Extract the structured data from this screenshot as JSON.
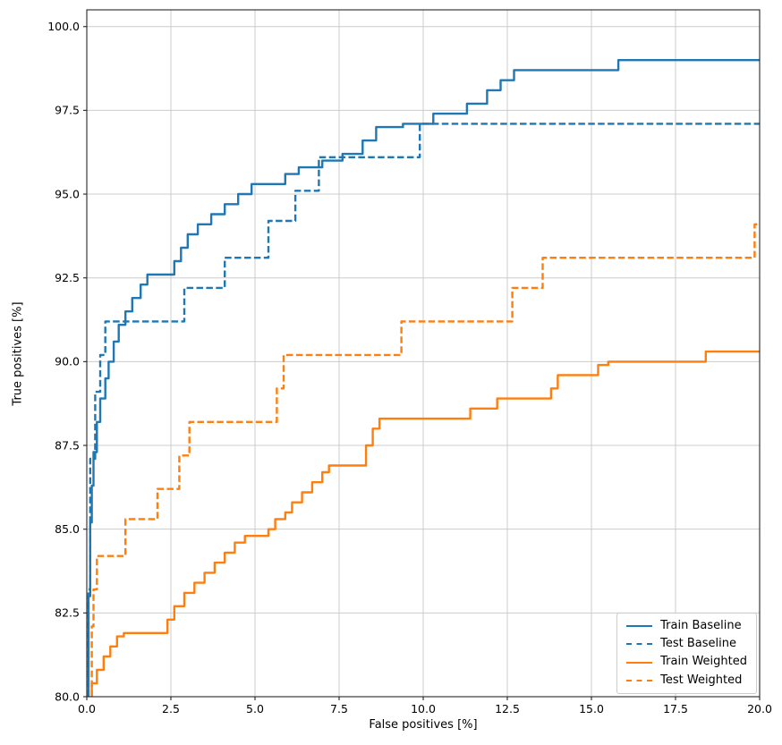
{
  "chart_data": {
    "type": "line",
    "title": "",
    "xlabel": "False positives [%]",
    "ylabel": "True positives [%]",
    "xlim": [
      0,
      20
    ],
    "ylim": [
      80,
      100.5
    ],
    "grid": true,
    "legend_position": "lower right",
    "xticks": [
      0.0,
      2.5,
      5.0,
      7.5,
      10.0,
      12.5,
      15.0,
      17.5,
      20.0
    ],
    "yticks": [
      80.0,
      82.5,
      85.0,
      87.5,
      90.0,
      92.5,
      95.0,
      97.5,
      100.0
    ],
    "xtick_labels": [
      "0.0",
      "2.5",
      "5.0",
      "7.5",
      "10.0",
      "12.5",
      "15.0",
      "17.5",
      "20.0"
    ],
    "ytick_labels": [
      "80.0",
      "82.5",
      "85.0",
      "87.5",
      "90.0",
      "92.5",
      "95.0",
      "97.5",
      "100.0"
    ],
    "colors": {
      "blue": "#1f77b4",
      "orange": "#ff7f0e",
      "grid": "#cccccc",
      "spine": "#262626"
    },
    "series": [
      {
        "name": "Train Baseline",
        "color": "#1f77b4",
        "style": "solid",
        "points": [
          [
            0.05,
            80.0
          ],
          [
            0.05,
            83.0
          ],
          [
            0.1,
            83.0
          ],
          [
            0.1,
            85.2
          ],
          [
            0.15,
            85.2
          ],
          [
            0.15,
            86.3
          ],
          [
            0.2,
            86.3
          ],
          [
            0.2,
            87.3
          ],
          [
            0.3,
            87.3
          ],
          [
            0.3,
            88.2
          ],
          [
            0.4,
            88.2
          ],
          [
            0.4,
            88.9
          ],
          [
            0.55,
            88.9
          ],
          [
            0.55,
            89.5
          ],
          [
            0.65,
            89.5
          ],
          [
            0.65,
            90.0
          ],
          [
            0.8,
            90.0
          ],
          [
            0.8,
            90.6
          ],
          [
            0.95,
            90.6
          ],
          [
            0.95,
            91.1
          ],
          [
            1.15,
            91.1
          ],
          [
            1.15,
            91.5
          ],
          [
            1.35,
            91.5
          ],
          [
            1.35,
            91.9
          ],
          [
            1.6,
            91.9
          ],
          [
            1.6,
            92.3
          ],
          [
            1.8,
            92.3
          ],
          [
            1.8,
            92.6
          ],
          [
            2.6,
            92.6
          ],
          [
            2.6,
            93.0
          ],
          [
            2.8,
            93.0
          ],
          [
            2.8,
            93.4
          ],
          [
            3.0,
            93.4
          ],
          [
            3.0,
            93.8
          ],
          [
            3.3,
            93.8
          ],
          [
            3.3,
            94.1
          ],
          [
            3.7,
            94.1
          ],
          [
            3.7,
            94.4
          ],
          [
            4.1,
            94.4
          ],
          [
            4.1,
            94.7
          ],
          [
            4.5,
            94.7
          ],
          [
            4.5,
            95.0
          ],
          [
            4.9,
            95.0
          ],
          [
            4.9,
            95.3
          ],
          [
            5.9,
            95.3
          ],
          [
            5.9,
            95.6
          ],
          [
            6.3,
            95.6
          ],
          [
            6.3,
            95.8
          ],
          [
            7.0,
            95.8
          ],
          [
            7.0,
            96.0
          ],
          [
            7.6,
            96.0
          ],
          [
            7.6,
            96.2
          ],
          [
            8.2,
            96.2
          ],
          [
            8.2,
            96.6
          ],
          [
            8.6,
            96.6
          ],
          [
            8.6,
            97.0
          ],
          [
            9.4,
            97.0
          ],
          [
            9.4,
            97.1
          ],
          [
            10.3,
            97.1
          ],
          [
            10.3,
            97.4
          ],
          [
            11.3,
            97.4
          ],
          [
            11.3,
            97.7
          ],
          [
            11.9,
            97.7
          ],
          [
            11.9,
            98.1
          ],
          [
            12.3,
            98.1
          ],
          [
            12.3,
            98.4
          ],
          [
            12.7,
            98.4
          ],
          [
            12.7,
            98.7
          ],
          [
            15.8,
            98.7
          ],
          [
            15.8,
            99.0
          ],
          [
            20.0,
            99.0
          ]
        ]
      },
      {
        "name": "Test Baseline",
        "color": "#1f77b4",
        "style": "dashed",
        "points": [
          [
            0.05,
            80.0
          ],
          [
            0.05,
            83.2
          ],
          [
            0.1,
            83.2
          ],
          [
            0.1,
            87.1
          ],
          [
            0.25,
            87.1
          ],
          [
            0.25,
            89.1
          ],
          [
            0.4,
            89.1
          ],
          [
            0.4,
            90.2
          ],
          [
            0.55,
            90.2
          ],
          [
            0.55,
            91.2
          ],
          [
            2.9,
            91.2
          ],
          [
            2.9,
            92.2
          ],
          [
            4.1,
            92.2
          ],
          [
            4.1,
            93.1
          ],
          [
            5.4,
            93.1
          ],
          [
            5.4,
            94.2
          ],
          [
            6.2,
            94.2
          ],
          [
            6.2,
            95.1
          ],
          [
            6.9,
            95.1
          ],
          [
            6.9,
            96.1
          ],
          [
            9.9,
            96.1
          ],
          [
            9.9,
            97.1
          ],
          [
            20.0,
            97.1
          ]
        ]
      },
      {
        "name": "Train Weighted",
        "color": "#ff7f0e",
        "style": "solid",
        "points": [
          [
            0.15,
            80.0
          ],
          [
            0.15,
            80.4
          ],
          [
            0.3,
            80.4
          ],
          [
            0.3,
            80.8
          ],
          [
            0.5,
            80.8
          ],
          [
            0.5,
            81.2
          ],
          [
            0.7,
            81.2
          ],
          [
            0.7,
            81.5
          ],
          [
            0.9,
            81.5
          ],
          [
            0.9,
            81.8
          ],
          [
            1.1,
            81.8
          ],
          [
            1.1,
            81.9
          ],
          [
            2.4,
            81.9
          ],
          [
            2.4,
            82.3
          ],
          [
            2.6,
            82.3
          ],
          [
            2.6,
            82.7
          ],
          [
            2.9,
            82.7
          ],
          [
            2.9,
            83.1
          ],
          [
            3.2,
            83.1
          ],
          [
            3.2,
            83.4
          ],
          [
            3.5,
            83.4
          ],
          [
            3.5,
            83.7
          ],
          [
            3.8,
            83.7
          ],
          [
            3.8,
            84.0
          ],
          [
            4.1,
            84.0
          ],
          [
            4.1,
            84.3
          ],
          [
            4.4,
            84.3
          ],
          [
            4.4,
            84.6
          ],
          [
            4.7,
            84.6
          ],
          [
            4.7,
            84.8
          ],
          [
            5.4,
            84.8
          ],
          [
            5.4,
            85.0
          ],
          [
            5.6,
            85.0
          ],
          [
            5.6,
            85.3
          ],
          [
            5.9,
            85.3
          ],
          [
            5.9,
            85.5
          ],
          [
            6.1,
            85.5
          ],
          [
            6.1,
            85.8
          ],
          [
            6.4,
            85.8
          ],
          [
            6.4,
            86.1
          ],
          [
            6.7,
            86.1
          ],
          [
            6.7,
            86.4
          ],
          [
            7.0,
            86.4
          ],
          [
            7.0,
            86.7
          ],
          [
            7.2,
            86.7
          ],
          [
            7.2,
            86.9
          ],
          [
            8.3,
            86.9
          ],
          [
            8.3,
            87.5
          ],
          [
            8.5,
            87.5
          ],
          [
            8.5,
            88.0
          ],
          [
            8.7,
            88.0
          ],
          [
            8.7,
            88.3
          ],
          [
            11.4,
            88.3
          ],
          [
            11.4,
            88.6
          ],
          [
            12.2,
            88.6
          ],
          [
            12.2,
            88.9
          ],
          [
            13.8,
            88.9
          ],
          [
            13.8,
            89.2
          ],
          [
            14.0,
            89.2
          ],
          [
            14.0,
            89.6
          ],
          [
            15.2,
            89.6
          ],
          [
            15.2,
            89.9
          ],
          [
            15.5,
            89.9
          ],
          [
            15.5,
            90.0
          ],
          [
            18.4,
            90.0
          ],
          [
            18.4,
            90.3
          ],
          [
            20.0,
            90.3
          ]
        ]
      },
      {
        "name": "Test Weighted",
        "color": "#ff7f0e",
        "style": "dashed",
        "points": [
          [
            0.15,
            80.0
          ],
          [
            0.15,
            82.1
          ],
          [
            0.2,
            82.1
          ],
          [
            0.2,
            83.2
          ],
          [
            0.3,
            83.2
          ],
          [
            0.3,
            84.2
          ],
          [
            1.15,
            84.2
          ],
          [
            1.15,
            85.3
          ],
          [
            2.1,
            85.3
          ],
          [
            2.1,
            86.2
          ],
          [
            2.75,
            86.2
          ],
          [
            2.75,
            87.2
          ],
          [
            3.05,
            87.2
          ],
          [
            3.05,
            88.2
          ],
          [
            5.65,
            88.2
          ],
          [
            5.65,
            89.2
          ],
          [
            5.85,
            89.2
          ],
          [
            5.85,
            90.2
          ],
          [
            9.35,
            90.2
          ],
          [
            9.35,
            91.2
          ],
          [
            12.65,
            91.2
          ],
          [
            12.65,
            92.2
          ],
          [
            13.55,
            92.2
          ],
          [
            13.55,
            93.1
          ],
          [
            19.85,
            93.1
          ],
          [
            19.85,
            94.1
          ],
          [
            20.0,
            94.1
          ]
        ]
      }
    ]
  }
}
